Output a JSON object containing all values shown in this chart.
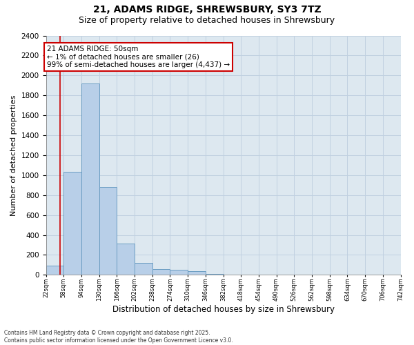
{
  "title1": "21, ADAMS RIDGE, SHREWSBURY, SY3 7TZ",
  "title2": "Size of property relative to detached houses in Shrewsbury",
  "xlabel": "Distribution of detached houses by size in Shrewsbury",
  "ylabel": "Number of detached properties",
  "bar_heights": [
    90,
    1035,
    1920,
    880,
    315,
    120,
    55,
    50,
    35,
    10,
    0,
    0,
    0,
    0,
    0,
    0,
    0,
    0,
    0,
    0
  ],
  "bin_labels": [
    "22sqm",
    "58sqm",
    "94sqm",
    "130sqm",
    "166sqm",
    "202sqm",
    "238sqm",
    "274sqm",
    "310sqm",
    "346sqm",
    "382sqm",
    "418sqm",
    "454sqm",
    "490sqm",
    "526sqm",
    "562sqm",
    "598sqm",
    "634sqm",
    "670sqm",
    "706sqm",
    "742sqm"
  ],
  "n_bins": 20,
  "bar_color": "#b8cfe8",
  "bar_edge_color": "#6b9dc2",
  "subject_bin": 0.8,
  "vline_color": "#cc0000",
  "annotation_text": "21 ADAMS RIDGE: 50sqm\n← 1% of detached houses are smaller (26)\n99% of semi-detached houses are larger (4,437) →",
  "annotation_box_edgecolor": "#cc0000",
  "ylim": [
    0,
    2400
  ],
  "yticks": [
    0,
    200,
    400,
    600,
    800,
    1000,
    1200,
    1400,
    1600,
    1800,
    2000,
    2200,
    2400
  ],
  "grid_color": "#c0d0e0",
  "bg_color": "#dde8f0",
  "footer_text": "Contains HM Land Registry data © Crown copyright and database right 2025.\nContains public sector information licensed under the Open Government Licence v3.0.",
  "title1_fontsize": 10,
  "title2_fontsize": 9,
  "annotation_fontsize": 7.5
}
